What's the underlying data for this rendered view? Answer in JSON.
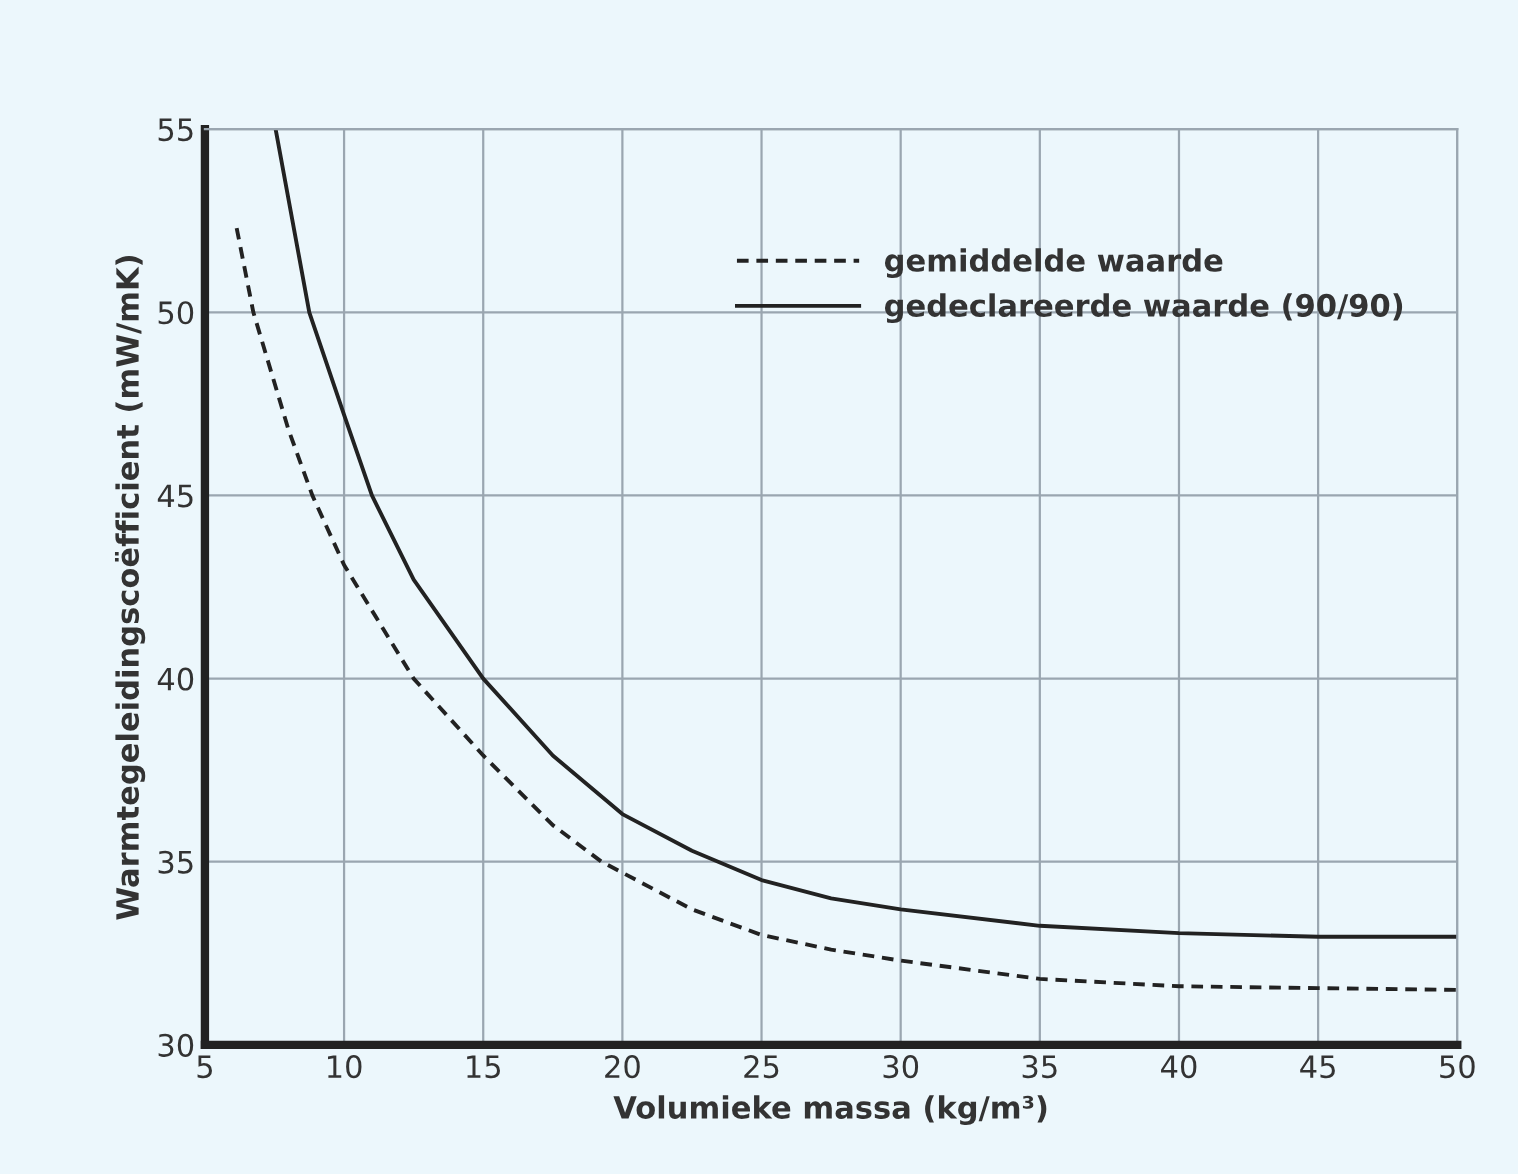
{
  "chart_data": {
    "type": "line",
    "xlabel": "Volumieke massa (kg/m³)",
    "ylabel": "Warmtegeleidingscoëfficient (mW/mK)",
    "xlim": [
      5,
      50
    ],
    "ylim": [
      30,
      55
    ],
    "xticks": [
      5,
      10,
      15,
      20,
      25,
      30,
      35,
      40,
      45,
      50
    ],
    "yticks": [
      30,
      35,
      40,
      45,
      50,
      55
    ],
    "grid": true,
    "legend": "top right",
    "series": [
      {
        "name": "gemiddelde waarde",
        "color": "#222222",
        "line_style": "dashed",
        "x": [
          6.14,
          6.74,
          8,
          8.86,
          10,
          12.5,
          15,
          17.5,
          19.25,
          20,
          22.5,
          25,
          27.5,
          30,
          35,
          40,
          45,
          50
        ],
        "values": [
          52.3,
          50,
          46.8,
          45,
          43.1,
          40,
          37.9,
          36.0,
          35,
          34.7,
          33.7,
          33.0,
          32.6,
          32.3,
          31.8,
          31.6,
          31.55,
          31.5
        ]
      },
      {
        "name": "gedeclareerde waarde (90/90)",
        "color": "#222222",
        "line_style": "solid",
        "x": [
          7.54,
          8.75,
          10,
          11,
          12.5,
          15,
          17.5,
          20,
          22.5,
          25,
          27.5,
          30,
          35,
          40,
          45,
          50
        ],
        "values": [
          55,
          50,
          47.2,
          45,
          42.7,
          40,
          37.9,
          36.3,
          35.3,
          34.5,
          34.0,
          33.7,
          33.25,
          33.05,
          32.95,
          32.95
        ]
      }
    ]
  }
}
